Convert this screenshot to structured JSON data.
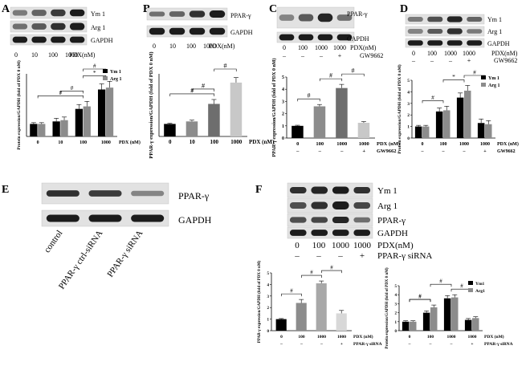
{
  "panels": {
    "A": {
      "letter": "A",
      "blot_labels": [
        "Ym 1",
        "Arg 1",
        "GAPDH"
      ],
      "lane_labels": [
        "0",
        "10",
        "100",
        "1000"
      ],
      "lane_unit": "PDX(nM)"
    },
    "B": {
      "letter": "B",
      "blot_labels": [
        "PPAR-γ",
        "GAPDH"
      ],
      "lane_labels": [
        "0",
        "10",
        "100",
        "1000"
      ],
      "lane_unit": "PDX(nM)"
    },
    "C": {
      "letter": "C",
      "blot_labels": [
        "PPAR-γ",
        "GAPDH"
      ],
      "lane_labels": [
        "0",
        "100",
        "1000",
        "1000"
      ],
      "lane_unit": "PDX(nM)",
      "row2": [
        "–",
        "–",
        "–",
        "+"
      ],
      "row2_label": "GW9662"
    },
    "D": {
      "letter": "D",
      "blot_labels": [
        "Ym 1",
        "Arg 1",
        "GAPDH"
      ],
      "lane_labels": [
        "0",
        "100",
        "1000",
        "1000"
      ],
      "lane_unit": "PDX(nM)",
      "row2": [
        "–",
        "–",
        "–",
        "+"
      ],
      "row2_label": "GW9662"
    },
    "E": {
      "letter": "E",
      "blot_labels": [
        "PPAR-γ",
        "GAPDH"
      ],
      "lane_labels": [
        "control",
        "PPAR-γ ctrl-siRNA",
        "PPAR-γ siRNA"
      ]
    },
    "F": {
      "letter": "F",
      "blot_labels": [
        "Ym 1",
        "Arg 1",
        "PPAR-γ",
        "GAPDH"
      ],
      "lane_labels": [
        "0",
        "100",
        "1000",
        "1000"
      ],
      "lane_unit": "PDX(nM)",
      "row2": [
        "–",
        "–",
        "–",
        "+"
      ],
      "row2_label": "PPAR-γ siRNA"
    }
  },
  "chart_data": [
    {
      "id": "A",
      "type": "bar",
      "ylabel": "Protein expression/GAPDH (fold of PDX 0 nM)",
      "categories": [
        "0",
        "10",
        "100",
        "1000"
      ],
      "xlabel": "PDX (nM)",
      "row2": null,
      "ylim": [
        0,
        5
      ],
      "yticks": [],
      "series": [
        {
          "name": "Ym 1",
          "values": [
            1.0,
            1.2,
            2.2,
            3.75
          ],
          "errors": [
            0.1,
            0.25,
            0.35,
            0.45
          ],
          "color": "#000000"
        },
        {
          "name": "Arg 1",
          "values": [
            1.0,
            1.3,
            2.4,
            3.9
          ],
          "errors": [
            0.1,
            0.25,
            0.4,
            0.5
          ],
          "color": "#8c8c8c"
        }
      ],
      "sig": [
        {
          "from": 0,
          "to": 2,
          "label": "#"
        },
        {
          "from": 1,
          "to": 2,
          "label": "#"
        },
        {
          "from": 2,
          "to": 3,
          "label": "#"
        },
        {
          "from": 2,
          "to": 3,
          "label": "*"
        }
      ],
      "legend": "top-right"
    },
    {
      "id": "B",
      "type": "bar",
      "ylabel": "PPAR-γ expression/GAPDH (fold of PDX 0 nM)",
      "categories": [
        "0",
        "10",
        "100",
        "1000"
      ],
      "xlabel": "PDX (nM)",
      "row2": null,
      "ylim": [
        0,
        5
      ],
      "yticks": [],
      "series": [
        {
          "name": "",
          "values": [
            1.0,
            1.2,
            2.6,
            4.3
          ],
          "errors": [
            0.05,
            0.1,
            0.35,
            0.4
          ],
          "colors": [
            "#000000",
            "#8c8c8c",
            "#6e6e6e",
            "#c8c8c8"
          ]
        }
      ],
      "sig": [
        {
          "from": 0,
          "to": 2,
          "label": "#"
        },
        {
          "from": 1,
          "to": 2,
          "label": "#"
        },
        {
          "from": 2,
          "to": 3,
          "label": "#"
        }
      ],
      "legend": "none"
    },
    {
      "id": "C",
      "type": "bar",
      "ylabel": "PPAR-γ expression/GAPDH (fold of PDX 0 nM)",
      "categories": [
        "0",
        "100",
        "1000",
        "1000"
      ],
      "xlabel": "PDX (nM)",
      "row2": [
        "–",
        "–",
        "–",
        "+"
      ],
      "row2_label": "GW9662",
      "ylim": [
        0,
        5
      ],
      "yticks": [
        "0",
        "1",
        "2",
        "3",
        "4",
        "5"
      ],
      "series": [
        {
          "name": "",
          "values": [
            1.0,
            2.6,
            4.1,
            1.25
          ],
          "errors": [
            0.05,
            0.15,
            0.3,
            0.1
          ],
          "colors": [
            "#000000",
            "#8c8c8c",
            "#6e6e6e",
            "#c8c8c8"
          ]
        }
      ],
      "sig": [
        {
          "from": 0,
          "to": 1,
          "label": "#"
        },
        {
          "from": 1,
          "to": 2,
          "label": "#"
        },
        {
          "from": 2,
          "to": 3,
          "label": "#"
        }
      ],
      "legend": "none"
    },
    {
      "id": "D",
      "type": "bar",
      "ylabel": "Protein expression/GAPDH (fold of PDX 0 nM)",
      "categories": [
        "0",
        "100",
        "1000",
        "1000"
      ],
      "xlabel": "PDX (nM)",
      "row2": [
        "–",
        "–",
        "–",
        "+"
      ],
      "row2_label": "GW9662",
      "ylim": [
        0,
        5
      ],
      "yticks": [
        "0",
        "1",
        "2",
        "3",
        "4",
        "5"
      ],
      "series": [
        {
          "name": "Ym 1",
          "values": [
            1.0,
            2.3,
            3.5,
            1.3
          ],
          "errors": [
            0.1,
            0.3,
            0.4,
            0.35
          ],
          "color": "#000000"
        },
        {
          "name": "Arg 1",
          "values": [
            1.0,
            2.4,
            4.1,
            1.2
          ],
          "errors": [
            0.1,
            0.35,
            0.45,
            0.3
          ],
          "color": "#8c8c8c"
        }
      ],
      "sig": [
        {
          "from": 0,
          "to": 1,
          "label": "#"
        },
        {
          "from": 1,
          "to": 2,
          "label": "*"
        },
        {
          "from": 2,
          "to": 3,
          "label": "#"
        }
      ],
      "legend": "top-right"
    },
    {
      "id": "F1",
      "type": "bar",
      "ylabel": "PPAR-γ expression/GAPDH (fold of PDX 0 nM)",
      "categories": [
        "0",
        "100",
        "1000",
        "1000"
      ],
      "xlabel": "PDX (nM)",
      "row2": [
        "–",
        "–",
        "–",
        "+"
      ],
      "row2_label": "PPAR-γ siRNA",
      "ylim": [
        0,
        5
      ],
      "yticks": [
        "0",
        "1",
        "2",
        "3",
        "4",
        "5"
      ],
      "series": [
        {
          "name": "",
          "values": [
            1.0,
            2.4,
            4.1,
            1.5
          ],
          "errors": [
            0.05,
            0.3,
            0.2,
            0.25
          ],
          "colors": [
            "#000000",
            "#8c8c8c",
            "#a8a8a8",
            "#d8d8d8"
          ]
        }
      ],
      "sig": [
        {
          "from": 0,
          "to": 1,
          "label": "#"
        },
        {
          "from": 1,
          "to": 2,
          "label": "#"
        },
        {
          "from": 2,
          "to": 3,
          "label": "#"
        }
      ],
      "legend": "none"
    },
    {
      "id": "F2",
      "type": "bar",
      "ylabel": "Protein expression/GAPDH (fold of PDX 0 nM)",
      "categories": [
        "0",
        "100",
        "1000",
        "1000"
      ],
      "xlabel": "PDX (nM)",
      "row2": [
        "–",
        "–",
        "–",
        "+"
      ],
      "row2_label": "PPAR-γ siRNA",
      "ylim": [
        0,
        5
      ],
      "yticks": [
        "0",
        "1",
        "2",
        "3",
        "4",
        "5"
      ],
      "series": [
        {
          "name": "Ym1",
          "values": [
            1.0,
            2.0,
            3.6,
            1.2
          ],
          "errors": [
            0.1,
            0.2,
            0.3,
            0.15
          ],
          "color": "#000000"
        },
        {
          "name": "Arg1",
          "values": [
            1.0,
            2.6,
            3.7,
            1.4
          ],
          "errors": [
            0.1,
            0.25,
            0.3,
            0.15
          ],
          "color": "#8c8c8c"
        }
      ],
      "sig": [
        {
          "from": 0,
          "to": 1,
          "label": "#"
        },
        {
          "from": 0,
          "to": 1,
          "label": "#"
        },
        {
          "from": 1,
          "to": 2,
          "label": "#"
        },
        {
          "from": 2,
          "to": 3,
          "label": "#"
        }
      ],
      "legend": "top-right"
    }
  ]
}
